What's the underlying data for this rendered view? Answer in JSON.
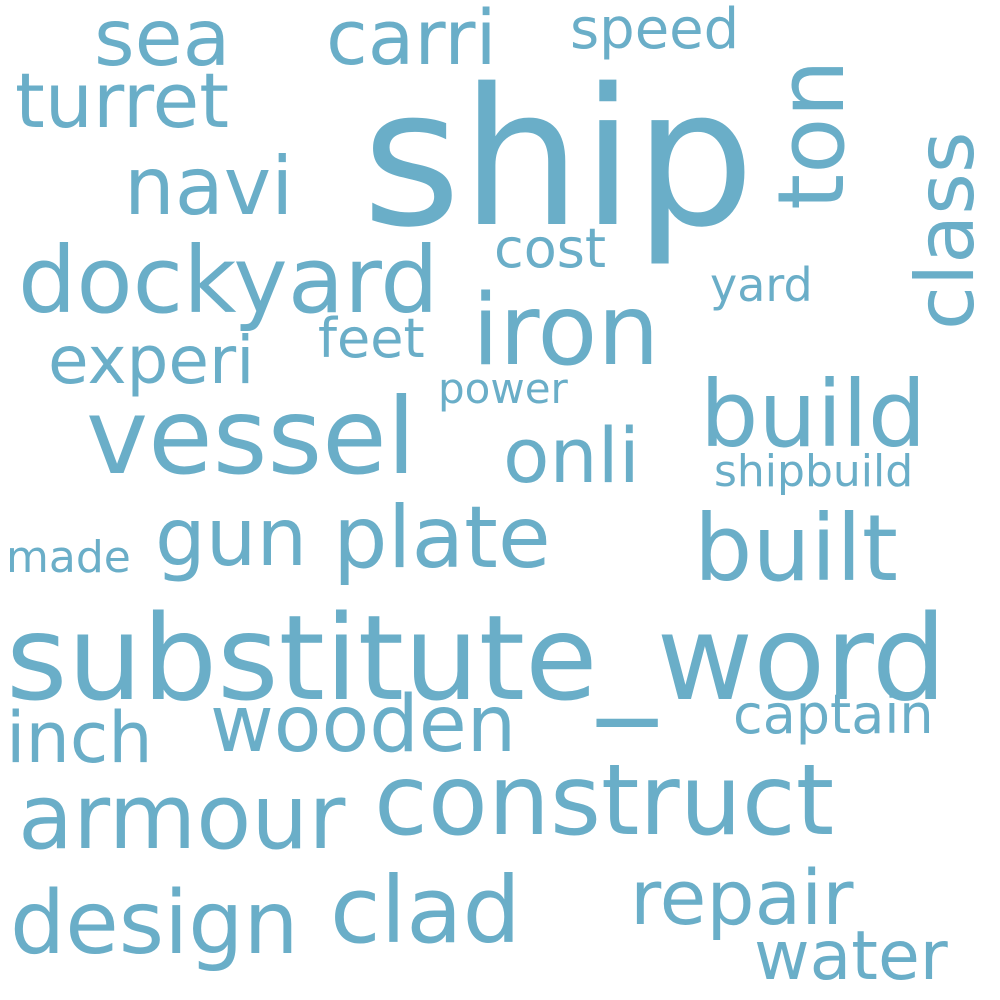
{
  "color": "#6aaec8",
  "words": {
    "ship": "ship",
    "substitute_word": "substitute_word",
    "vessel": "vessel",
    "construct": "construct",
    "iron": "iron",
    "dockyard": "dockyard",
    "build": "build",
    "built": "built",
    "clad": "clad",
    "armour": "armour",
    "design": "design",
    "plate": "plate",
    "repair": "repair",
    "wooden": "wooden",
    "turret": "turret",
    "navi": "navi",
    "gun": "gun",
    "sea": "sea",
    "carri": "carri",
    "onli": "onli",
    "inch": "inch",
    "water": "water",
    "experi": "experi",
    "captain": "captain",
    "speed": "speed",
    "feet": "feet",
    "cost": "cost",
    "yard": "yard",
    "shipbuild": "shipbuild",
    "power": "power",
    "made": "made",
    "ton": "ton",
    "class": "class"
  }
}
